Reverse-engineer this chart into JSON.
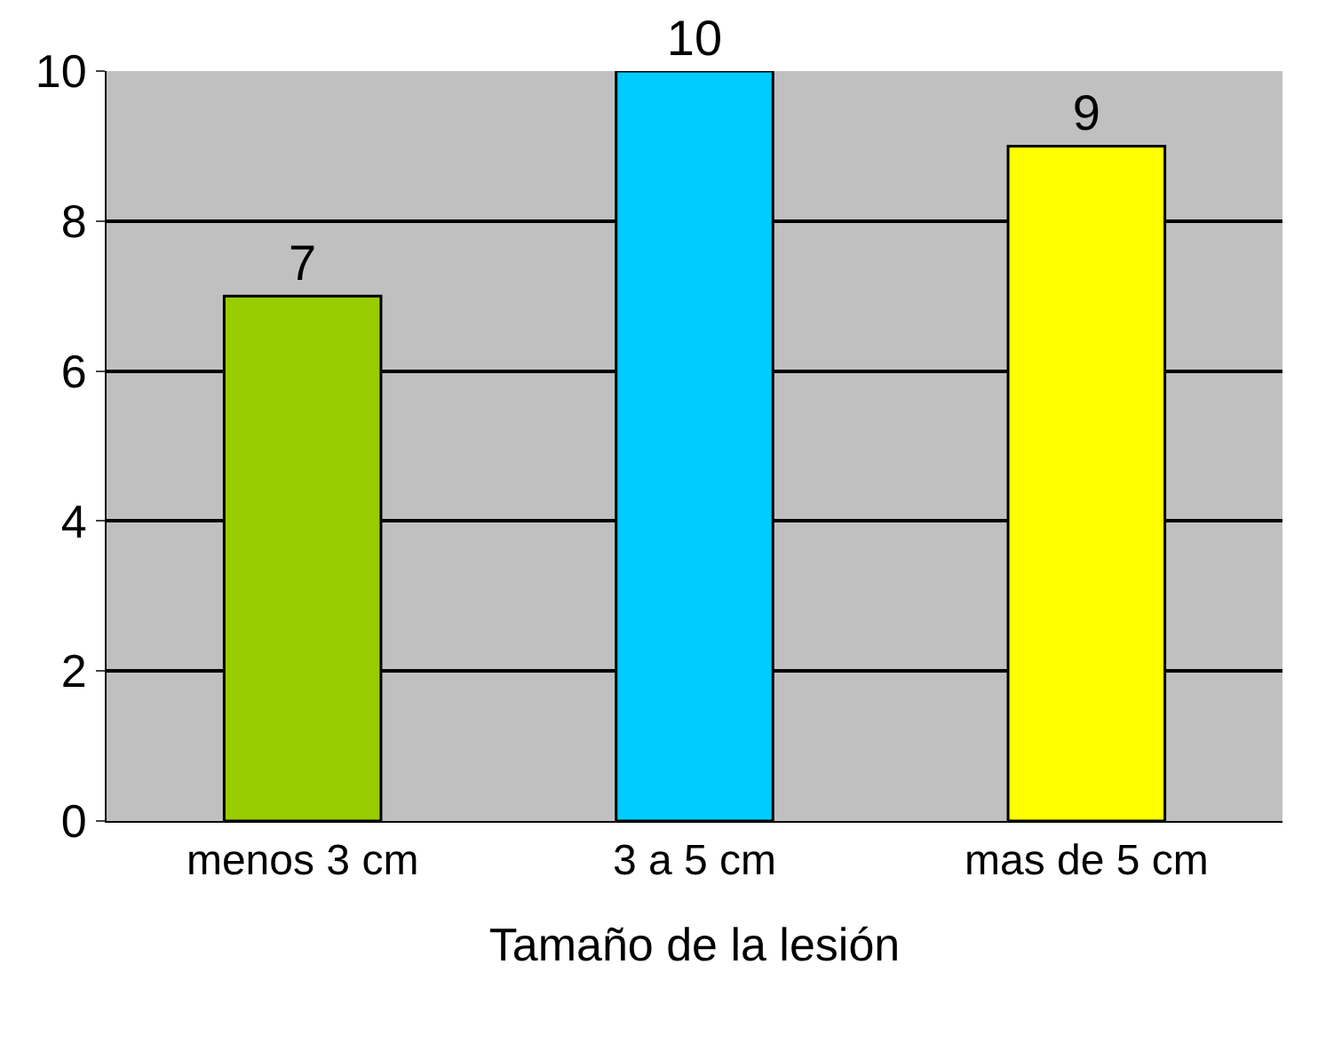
{
  "chart_data": {
    "type": "bar",
    "xlabel": "Tamaño de la lesión",
    "categories": [
      "menos 3 cm",
      "3 a 5 cm",
      "mas de 5 cm"
    ],
    "values": [
      7,
      10,
      9
    ],
    "colors": [
      "#99cc00",
      "#00ccff",
      "#ffff00"
    ],
    "ylim": [
      0,
      10
    ],
    "yticks": [
      0,
      2,
      4,
      6,
      8,
      10
    ],
    "grid": "y",
    "data_labels": true
  }
}
